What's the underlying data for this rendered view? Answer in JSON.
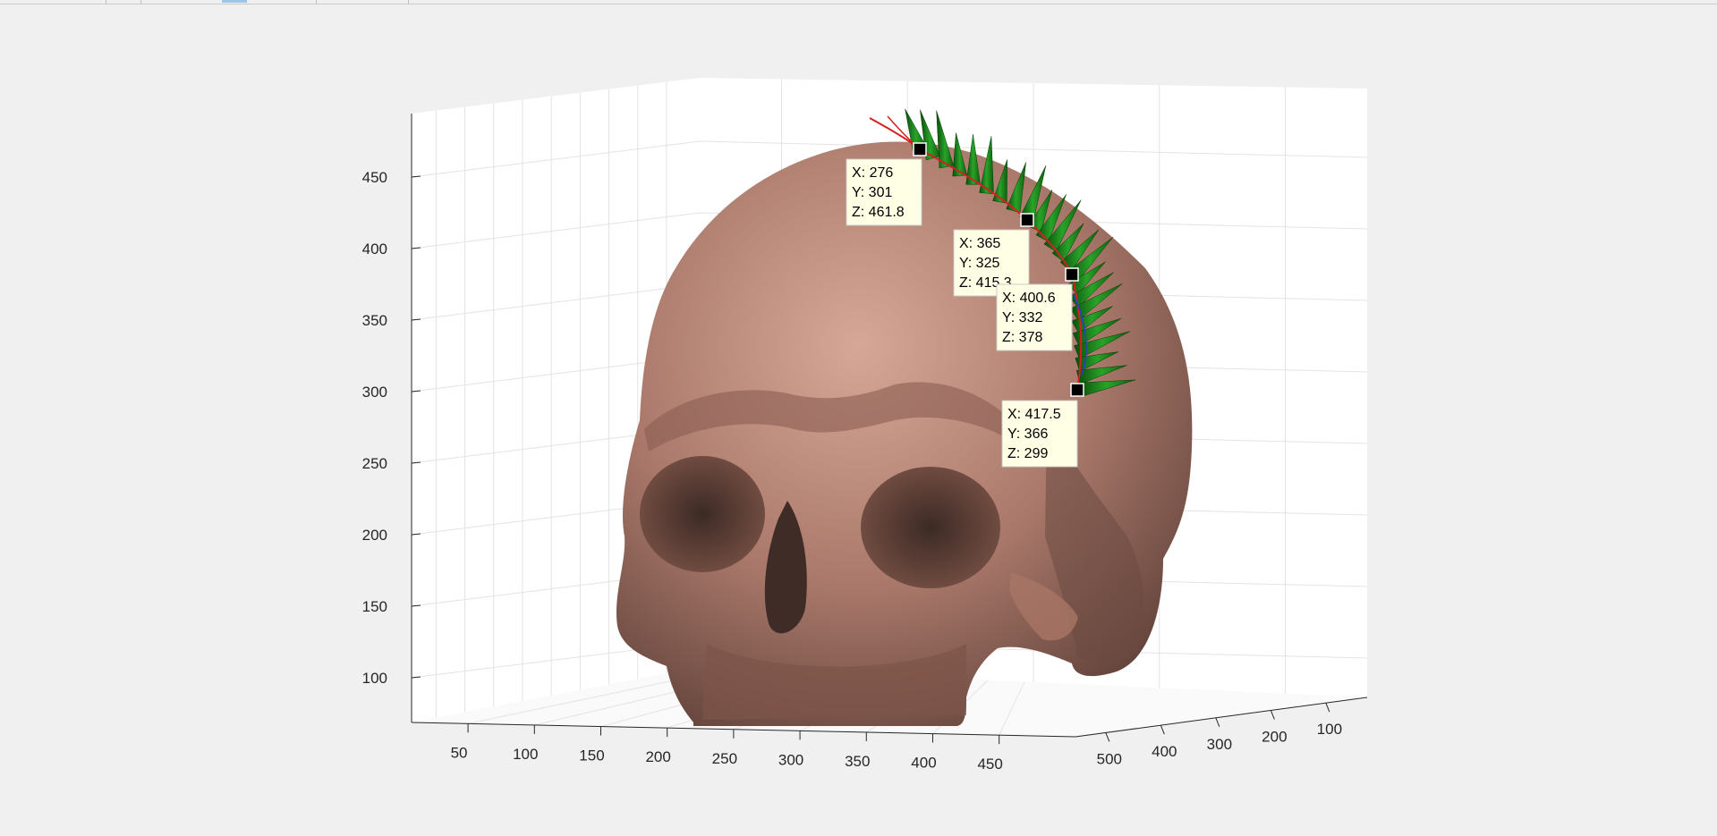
{
  "chart_data": {
    "type": "surface3d",
    "title": "",
    "xlabel": "",
    "ylabel": "",
    "zlabel": "",
    "grid": true,
    "x_ticks": [
      "50",
      "100",
      "150",
      "200",
      "250",
      "300",
      "350",
      "400",
      "450"
    ],
    "y_ticks": [
      "500",
      "400",
      "300",
      "200",
      "100"
    ],
    "z_ticks": [
      "450",
      "400",
      "350",
      "300",
      "250",
      "200",
      "150",
      "100"
    ],
    "surface_color": "#c69384",
    "normal_arrow_color": "#1c8a1c",
    "path_color": "#d42020",
    "datatips": [
      {
        "lines": [
          "X: 276",
          "Y: 301",
          "Z: 461.8"
        ]
      },
      {
        "lines": [
          "X: 365",
          "Y: 325",
          "Z: 415.3"
        ]
      },
      {
        "lines": [
          "X: 400.6",
          "Y: 332",
          "Z: 378"
        ]
      },
      {
        "lines": [
          "X: 417.5",
          "Y: 366",
          "Z: 299"
        ]
      }
    ],
    "points": [
      {
        "x": 276,
        "y": 301,
        "z": 461.8
      },
      {
        "x": 365,
        "y": 325,
        "z": 415.3
      },
      {
        "x": 400.6,
        "y": 332,
        "z": 378
      },
      {
        "x": 417.5,
        "y": 366,
        "z": 299
      }
    ]
  }
}
